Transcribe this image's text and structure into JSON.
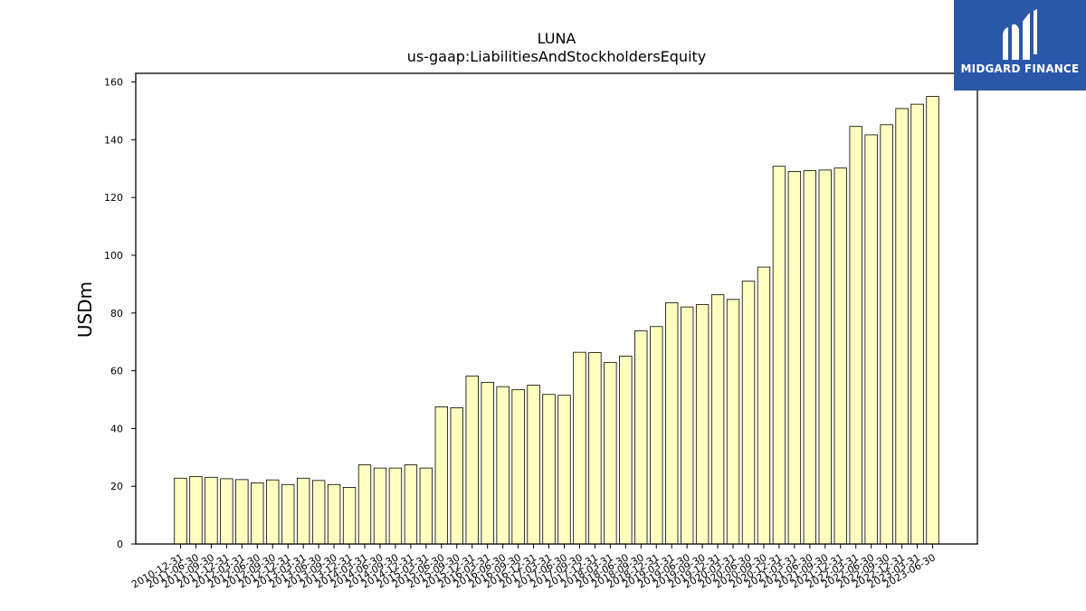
{
  "chart_data": {
    "type": "bar",
    "title": "LUNA",
    "subtitle": "us-gaap:LiabilitiesAndStockholdersEquity",
    "xlabel": "",
    "ylabel": "USDm",
    "ylim": [
      0,
      163
    ],
    "yticks": [
      0,
      20,
      40,
      60,
      80,
      100,
      120,
      140,
      160
    ],
    "bar_color": "#ffffc0",
    "categories": [
      "2010-12-31",
      "2011-06-30",
      "2011-09-30",
      "2011-12-31",
      "2012-03-31",
      "2012-06-30",
      "2012-09-30",
      "2012-12-31",
      "2013-03-31",
      "2013-06-30",
      "2013-09-30",
      "2013-12-31",
      "2014-03-31",
      "2014-06-30",
      "2014-09-30",
      "2014-12-31",
      "2015-03-31",
      "2015-06-30",
      "2015-09-30",
      "2015-12-31",
      "2016-03-31",
      "2016-06-30",
      "2016-09-30",
      "2016-12-31",
      "2017-03-31",
      "2017-06-30",
      "2017-09-30",
      "2017-12-31",
      "2018-03-31",
      "2018-06-30",
      "2018-09-30",
      "2018-12-31",
      "2019-03-31",
      "2019-06-30",
      "2019-09-30",
      "2019-12-31",
      "2020-03-31",
      "2020-06-30",
      "2020-09-30",
      "2020-12-31",
      "2021-03-31",
      "2021-06-30",
      "2021-09-30",
      "2021-12-31",
      "2022-03-31",
      "2022-06-30",
      "2022-09-30",
      "2022-12-31",
      "2023-03-31",
      "2023-06-30"
    ],
    "values": [
      22.8,
      23.4,
      23.1,
      22.6,
      22.3,
      21.2,
      22.2,
      20.6,
      22.8,
      22.0,
      20.6,
      19.6,
      27.4,
      26.3,
      26.3,
      27.4,
      26.3,
      47.5,
      47.2,
      58.2,
      56.0,
      54.5,
      53.5,
      55.0,
      51.8,
      51.5,
      66.4,
      66.3,
      62.9,
      65.1,
      73.8,
      75.3,
      83.5,
      82.1,
      82.9,
      86.3,
      84.7,
      91.0,
      95.9,
      130.8,
      129.0,
      129.3,
      129.5,
      130.2,
      144.6,
      141.7,
      145.2,
      150.8,
      152.3,
      155.0
    ]
  },
  "logo": {
    "text": "MIDGARD FINANCE",
    "background": "#2b57a8"
  }
}
